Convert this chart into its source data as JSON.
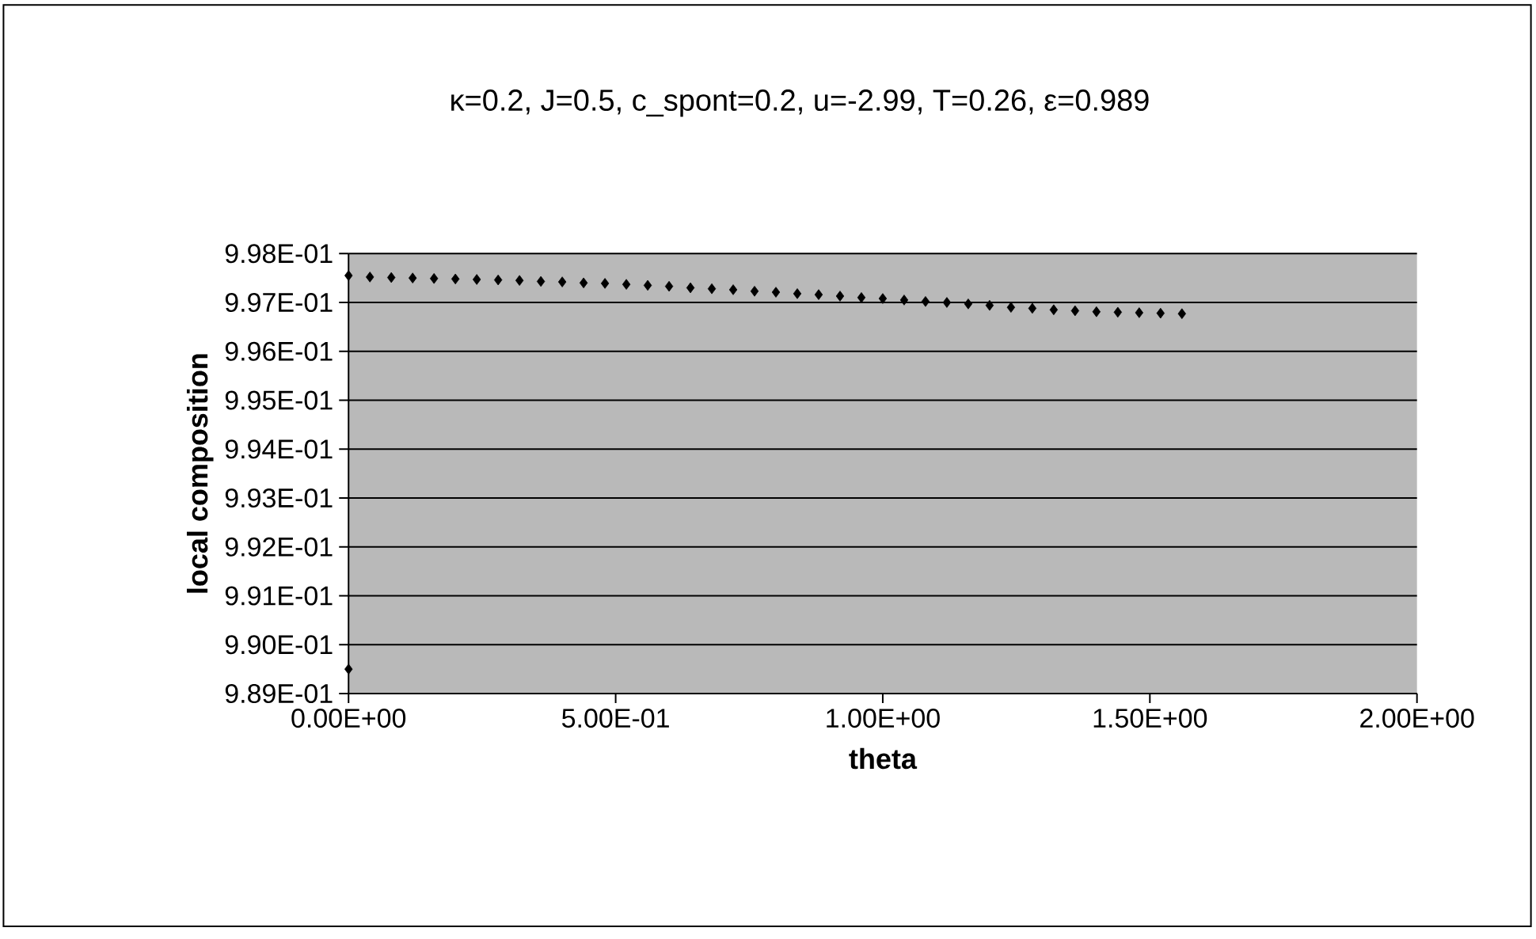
{
  "chart_data": {
    "type": "scatter",
    "title": "κ=0.2, J=0.5, c_spont=0.2, u=-2.99, T=0.26, ε=0.989",
    "xlabel": "theta",
    "ylabel": "local composition",
    "xlim": [
      0,
      2
    ],
    "ylim": [
      0.989,
      0.998
    ],
    "xticks": [
      {
        "value": 0,
        "label": "0.00E+00"
      },
      {
        "value": 0.5,
        "label": "5.00E-01"
      },
      {
        "value": 1,
        "label": "1.00E+00"
      },
      {
        "value": 1.5,
        "label": "1.50E+00"
      },
      {
        "value": 2,
        "label": "2.00E+00"
      }
    ],
    "yticks": [
      {
        "value": 0.989,
        "label": "9.89E-01"
      },
      {
        "value": 0.99,
        "label": "9.90E-01"
      },
      {
        "value": 0.991,
        "label": "9.91E-01"
      },
      {
        "value": 0.992,
        "label": "9.92E-01"
      },
      {
        "value": 0.993,
        "label": "9.93E-01"
      },
      {
        "value": 0.994,
        "label": "9.94E-01"
      },
      {
        "value": 0.995,
        "label": "9.95E-01"
      },
      {
        "value": 0.996,
        "label": "9.96E-01"
      },
      {
        "value": 0.997,
        "label": "9.97E-01"
      },
      {
        "value": 0.998,
        "label": "9.98E-01"
      }
    ],
    "grid": "y",
    "marker": "diamond",
    "series": [
      {
        "color": "#000000",
        "x": [
          0,
          0,
          0.04,
          0.08,
          0.12,
          0.16,
          0.2,
          0.24,
          0.28,
          0.32,
          0.36,
          0.4,
          0.44,
          0.48,
          0.52,
          0.56,
          0.6,
          0.64,
          0.68,
          0.72,
          0.76,
          0.8,
          0.84,
          0.88,
          0.92,
          0.96,
          1.0,
          1.04,
          1.08,
          1.12,
          1.16,
          1.2,
          1.24,
          1.28,
          1.32,
          1.36,
          1.4,
          1.44,
          1.48,
          1.52,
          1.56
        ],
        "values": [
          0.9895,
          0.99755,
          0.99752,
          0.99751,
          0.9975,
          0.99749,
          0.99748,
          0.99747,
          0.99746,
          0.99745,
          0.99743,
          0.99742,
          0.9974,
          0.99739,
          0.99737,
          0.99735,
          0.99733,
          0.9973,
          0.99728,
          0.99726,
          0.99723,
          0.99721,
          0.99718,
          0.99716,
          0.99713,
          0.9971,
          0.99708,
          0.99705,
          0.99702,
          0.997,
          0.99697,
          0.99694,
          0.9969,
          0.99688,
          0.99685,
          0.99683,
          0.99681,
          0.9968,
          0.99679,
          0.99678,
          0.99677
        ]
      }
    ]
  }
}
